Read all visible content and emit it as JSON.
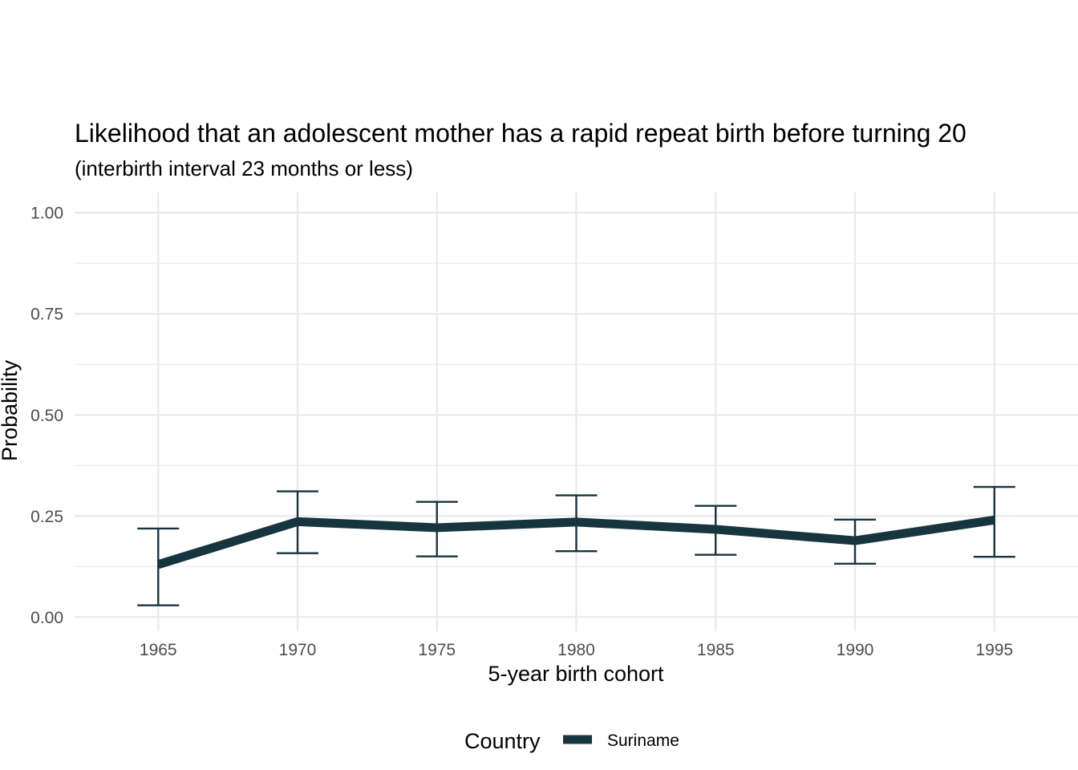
{
  "chart_data": {
    "type": "line",
    "title": "Likelihood that an adolescent mother has a rapid repeat birth before turning 20",
    "subtitle": "(interbirth interval 23 months or less)",
    "xlabel": "5-year birth cohort",
    "ylabel": "Probability",
    "x": [
      1965,
      1970,
      1975,
      1980,
      1985,
      1990,
      1995
    ],
    "x_ticks": [
      "1965",
      "1970",
      "1975",
      "1980",
      "1985",
      "1990",
      "1995"
    ],
    "xlim": [
      1962,
      1998
    ],
    "y_ticks": [
      "0.00",
      "0.25",
      "0.50",
      "0.75",
      "1.00"
    ],
    "ylim": [
      -0.035,
      1.05
    ],
    "grid": true,
    "series": [
      {
        "name": "Suriname",
        "color": "#17353f",
        "values": [
          0.13,
          0.236,
          0.221,
          0.235,
          0.217,
          0.189,
          0.24
        ],
        "lower": [
          0.029,
          0.158,
          0.15,
          0.163,
          0.154,
          0.132,
          0.149
        ],
        "upper": [
          0.219,
          0.311,
          0.285,
          0.301,
          0.275,
          0.241,
          0.322
        ]
      }
    ],
    "legend": {
      "title": "Country",
      "position": "bottom"
    }
  }
}
